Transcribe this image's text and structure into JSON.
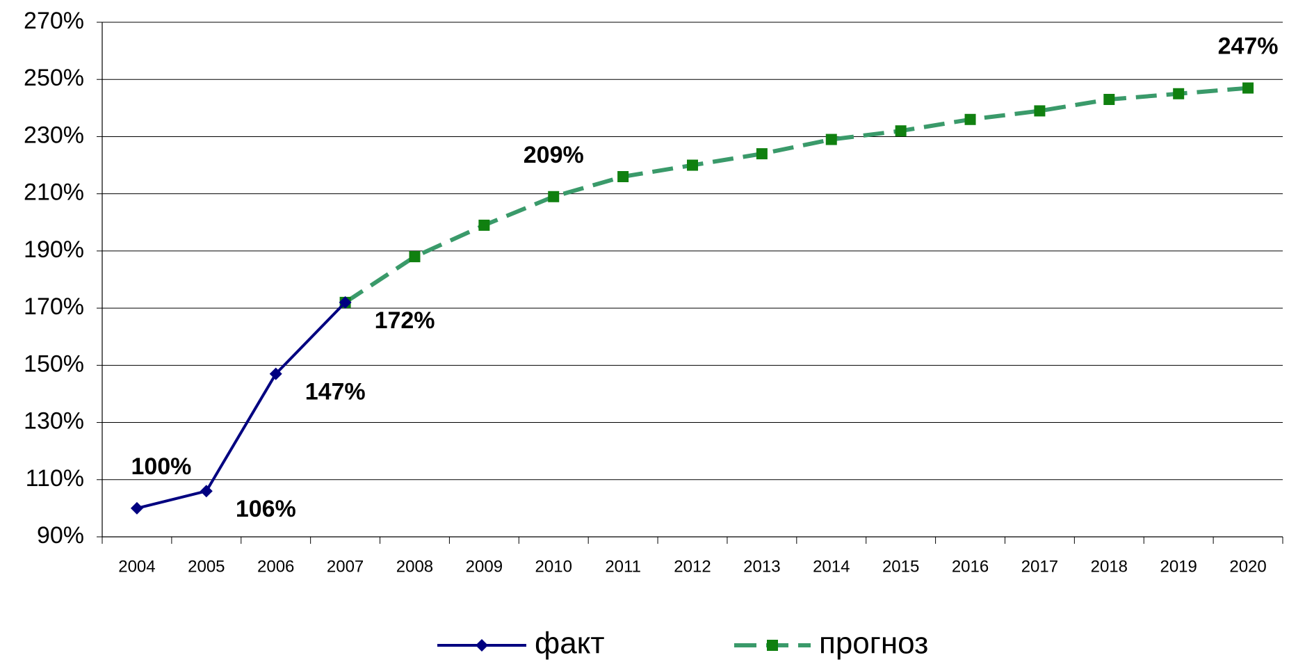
{
  "chart_data": {
    "type": "line",
    "categories": [
      "2004",
      "2005",
      "2006",
      "2007",
      "2008",
      "2009",
      "2010",
      "2011",
      "2012",
      "2013",
      "2014",
      "2015",
      "2016",
      "2017",
      "2018",
      "2019",
      "2020"
    ],
    "series": [
      {
        "name": "факт",
        "color": "#000080",
        "marker": "diamond",
        "dashed": false,
        "values": [
          100,
          106,
          147,
          172,
          null,
          null,
          null,
          null,
          null,
          null,
          null,
          null,
          null,
          null,
          null,
          null,
          null
        ],
        "value_labels": [
          "100%",
          "106%",
          "147%",
          "172%",
          null,
          null,
          null,
          null,
          null,
          null,
          null,
          null,
          null,
          null,
          null,
          null,
          null
        ]
      },
      {
        "name": "прогноз",
        "color": "#3a9a6a",
        "marker_color": "#108010",
        "marker": "square",
        "dashed": true,
        "values": [
          null,
          null,
          null,
          172,
          188,
          199,
          209,
          216,
          220,
          224,
          229,
          232,
          236,
          239,
          243,
          245,
          247
        ],
        "value_labels": [
          null,
          null,
          null,
          null,
          null,
          null,
          "209%",
          null,
          null,
          null,
          null,
          null,
          null,
          null,
          null,
          null,
          "247%"
        ]
      }
    ],
    "ylim": [
      90,
      270
    ],
    "yticks": [
      {
        "value": 90,
        "label": "90%"
      },
      {
        "value": 110,
        "label": "110%"
      },
      {
        "value": 130,
        "label": "130%"
      },
      {
        "value": 150,
        "label": "150%"
      },
      {
        "value": 170,
        "label": "170%"
      },
      {
        "value": 190,
        "label": "190%"
      },
      {
        "value": 210,
        "label": "210%"
      },
      {
        "value": 230,
        "label": "230%"
      },
      {
        "value": 250,
        "label": "250%"
      },
      {
        "value": 270,
        "label": "270%"
      }
    ],
    "grid": true,
    "legend": "bottom"
  }
}
